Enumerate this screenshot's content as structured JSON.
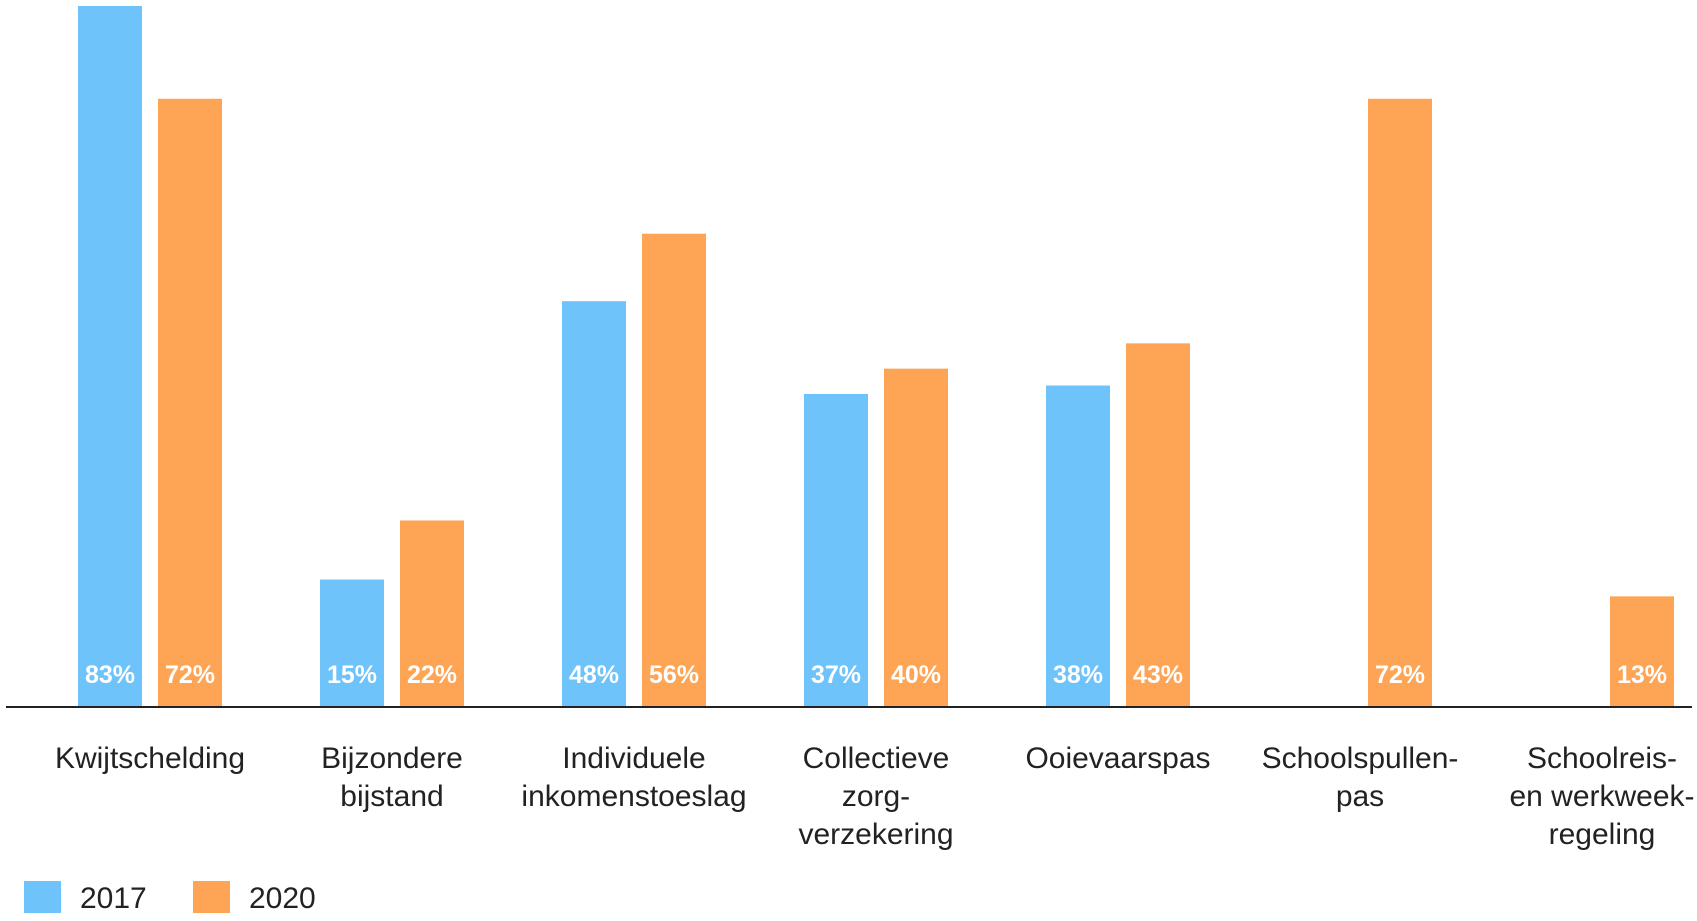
{
  "chart_data": {
    "type": "bar",
    "categories": [
      [
        "Kwijtschelding"
      ],
      [
        "Bijzondere",
        "bijstand"
      ],
      [
        "Individuele",
        "inkomenstoeslag"
      ],
      [
        "Collectieve",
        "zorg-",
        "verzekering"
      ],
      [
        "Ooievaarspas"
      ],
      [
        "Schoolspullen-",
        "pas"
      ],
      [
        "Schoolreis-",
        "en werkweek-",
        "regeling"
      ]
    ],
    "series": [
      {
        "name": "2017",
        "color": "#6ec3fa",
        "values": [
          83,
          15,
          48,
          37,
          38,
          null,
          null
        ],
        "labels": [
          "83%",
          "15%",
          "48%",
          "37%",
          "38%",
          "",
          ""
        ]
      },
      {
        "name": "2020",
        "color": "#fea455",
        "values": [
          72,
          22,
          56,
          40,
          43,
          72,
          13
        ],
        "labels": [
          "72%",
          "22%",
          "56%",
          "40%",
          "43%",
          "72%",
          "13%"
        ]
      }
    ],
    "ylim": [
      0,
      83
    ],
    "grid": false,
    "legend_position": "bottom-left"
  }
}
